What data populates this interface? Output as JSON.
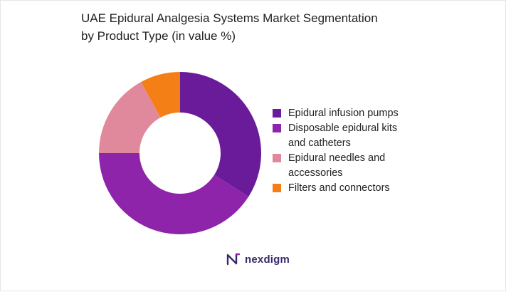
{
  "chart_data": {
    "type": "pie",
    "variant": "donut",
    "title_lines": [
      "UAE Epidural Analgesia Systems Market Segmentation",
      "by Product Type (in value %)"
    ],
    "categories": [
      "Epidural infusion pumps",
      "Disposable epidural kits and catheters",
      "Epidural needles and accessories",
      "Filters and connectors"
    ],
    "values": [
      34,
      41,
      17,
      8
    ],
    "legend_lines": [
      [
        "Epidural infusion pumps"
      ],
      [
        "Disposable epidural kits",
        "and catheters"
      ],
      [
        "Epidural needles and",
        "accessories"
      ],
      [
        "Filters and connectors"
      ]
    ],
    "colors": [
      "#6a1b9a",
      "#8e24aa",
      "#e0899d",
      "#f57f17"
    ],
    "legend_position": "right",
    "start_angle_deg": 0,
    "direction": "clockwise"
  },
  "brand": {
    "name": "nexdigm",
    "logo_icon": "nexdigm-logo-icon",
    "color": "#3a2a6b"
  }
}
